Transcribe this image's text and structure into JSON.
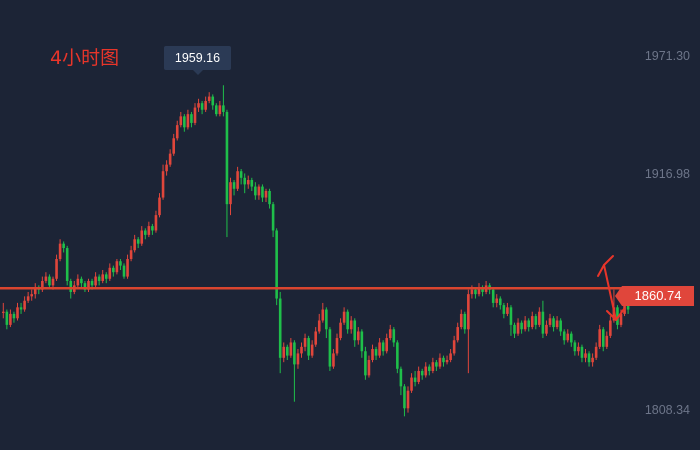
{
  "chart_data": {
    "type": "candlestick",
    "timeframe_label": "4小时图",
    "y_axis_labels": [
      "1971.30",
      "1916.98",
      "1808.34"
    ],
    "ylim": [
      1793,
      1998
    ],
    "peak_tooltip": "1959.16",
    "current_price_label": "1860.74",
    "horizontal_level": 1860.74,
    "colors": {
      "up": "#e0463b",
      "down": "#1fbf4a",
      "level_line": "#d9452f",
      "annotation": "#e8352a"
    },
    "grid": false,
    "candles": [
      [
        1856,
        1856,
        1853,
        1860
      ],
      [
        1856,
        1850,
        1848,
        1857
      ],
      [
        1850,
        1855,
        1849,
        1857
      ],
      [
        1855,
        1853,
        1851,
        1856
      ],
      [
        1853,
        1858,
        1852,
        1860
      ],
      [
        1858,
        1857,
        1855,
        1860
      ],
      [
        1857,
        1861,
        1856,
        1863
      ],
      [
        1861,
        1863,
        1860,
        1865
      ],
      [
        1863,
        1864,
        1861,
        1866
      ],
      [
        1864,
        1867,
        1862,
        1869
      ],
      [
        1867,
        1866,
        1864,
        1868
      ],
      [
        1866,
        1870,
        1865,
        1872
      ],
      [
        1870,
        1872,
        1869,
        1874
      ],
      [
        1872,
        1868,
        1867,
        1873
      ],
      [
        1868,
        1871,
        1866,
        1872
      ],
      [
        1871,
        1880,
        1870,
        1882
      ],
      [
        1880,
        1887,
        1879,
        1889
      ],
      [
        1887,
        1885,
        1883,
        1888
      ],
      [
        1885,
        1870,
        1868,
        1886
      ],
      [
        1870,
        1865,
        1862,
        1871
      ],
      [
        1865,
        1868,
        1864,
        1870
      ],
      [
        1868,
        1871,
        1867,
        1873
      ],
      [
        1871,
        1869,
        1867,
        1872
      ],
      [
        1869,
        1866,
        1865,
        1870
      ],
      [
        1866,
        1870,
        1865,
        1871
      ],
      [
        1870,
        1868,
        1866,
        1871
      ],
      [
        1868,
        1872,
        1867,
        1874
      ],
      [
        1872,
        1870,
        1868,
        1873
      ],
      [
        1870,
        1873,
        1869,
        1875
      ],
      [
        1873,
        1871,
        1869,
        1874
      ],
      [
        1871,
        1876,
        1870,
        1878
      ],
      [
        1876,
        1874,
        1872,
        1877
      ],
      [
        1874,
        1879,
        1873,
        1880
      ],
      [
        1879,
        1877,
        1875,
        1880
      ],
      [
        1877,
        1872,
        1871,
        1878
      ],
      [
        1872,
        1880,
        1871,
        1882
      ],
      [
        1880,
        1884,
        1879,
        1886
      ],
      [
        1884,
        1889,
        1883,
        1891
      ],
      [
        1889,
        1887,
        1885,
        1890
      ],
      [
        1887,
        1893,
        1886,
        1895
      ],
      [
        1893,
        1891,
        1889,
        1894
      ],
      [
        1891,
        1895,
        1890,
        1897
      ],
      [
        1895,
        1893,
        1891,
        1896
      ],
      [
        1893,
        1900,
        1892,
        1902
      ],
      [
        1900,
        1908,
        1899,
        1910
      ],
      [
        1908,
        1920,
        1907,
        1923
      ],
      [
        1920,
        1923,
        1918,
        1925
      ],
      [
        1923,
        1928,
        1922,
        1930
      ],
      [
        1928,
        1935,
        1927,
        1937
      ],
      [
        1935,
        1941,
        1934,
        1943
      ],
      [
        1941,
        1945,
        1940,
        1947
      ],
      [
        1945,
        1940,
        1938,
        1946
      ],
      [
        1940,
        1946,
        1939,
        1948
      ],
      [
        1946,
        1942,
        1940,
        1947
      ],
      [
        1942,
        1949,
        1941,
        1951
      ],
      [
        1949,
        1951,
        1947,
        1953
      ],
      [
        1951,
        1948,
        1946,
        1952
      ],
      [
        1948,
        1952,
        1947,
        1954
      ],
      [
        1952,
        1954,
        1951,
        1956
      ],
      [
        1954,
        1950,
        1948,
        1955
      ],
      [
        1950,
        1946,
        1945,
        1951
      ],
      [
        1946,
        1950,
        1945,
        1952
      ],
      [
        1950,
        1947,
        1945,
        1959.16
      ],
      [
        1947,
        1905,
        1890,
        1948
      ],
      [
        1905,
        1915,
        1900,
        1917
      ],
      [
        1915,
        1912,
        1909,
        1916
      ],
      [
        1912,
        1920,
        1911,
        1922
      ],
      [
        1920,
        1917,
        1914,
        1921
      ],
      [
        1917,
        1914,
        1910,
        1919
      ],
      [
        1914,
        1916,
        1912,
        1918
      ],
      [
        1916,
        1913,
        1911,
        1917
      ],
      [
        1913,
        1909,
        1907,
        1915
      ],
      [
        1909,
        1913,
        1907,
        1914
      ],
      [
        1913,
        1908,
        1906,
        1914
      ],
      [
        1908,
        1911,
        1906,
        1912
      ],
      [
        1911,
        1905,
        1903,
        1912
      ],
      [
        1905,
        1893,
        1890,
        1906
      ],
      [
        1893,
        1862,
        1859,
        1894
      ],
      [
        1862,
        1835,
        1828,
        1865
      ],
      [
        1835,
        1840,
        1833,
        1842
      ],
      [
        1840,
        1836,
        1834,
        1841
      ],
      [
        1836,
        1842,
        1835,
        1844
      ],
      [
        1842,
        1832,
        1815,
        1843
      ],
      [
        1832,
        1837,
        1830,
        1839
      ],
      [
        1837,
        1840,
        1835,
        1842
      ],
      [
        1840,
        1844,
        1838,
        1846
      ],
      [
        1844,
        1836,
        1834,
        1845
      ],
      [
        1836,
        1841,
        1835,
        1843
      ],
      [
        1841,
        1847,
        1840,
        1849
      ],
      [
        1847,
        1852,
        1846,
        1855
      ],
      [
        1852,
        1857,
        1851,
        1860
      ],
      [
        1857,
        1848,
        1844,
        1858
      ],
      [
        1848,
        1831,
        1829,
        1849
      ],
      [
        1831,
        1837,
        1830,
        1839
      ],
      [
        1837,
        1844,
        1836,
        1846
      ],
      [
        1844,
        1851,
        1843,
        1853
      ],
      [
        1851,
        1856,
        1850,
        1858
      ],
      [
        1856,
        1848,
        1846,
        1857
      ],
      [
        1848,
        1852,
        1846,
        1854
      ],
      [
        1852,
        1843,
        1840,
        1853
      ],
      [
        1843,
        1847,
        1841,
        1849
      ],
      [
        1847,
        1838,
        1835,
        1848
      ],
      [
        1838,
        1827,
        1825,
        1840
      ],
      [
        1827,
        1834,
        1826,
        1836
      ],
      [
        1834,
        1839,
        1833,
        1841
      ],
      [
        1839,
        1836,
        1834,
        1840
      ],
      [
        1836,
        1842,
        1835,
        1844
      ],
      [
        1842,
        1838,
        1836,
        1843
      ],
      [
        1838,
        1844,
        1837,
        1846
      ],
      [
        1844,
        1848,
        1843,
        1850
      ],
      [
        1848,
        1842,
        1840,
        1849
      ],
      [
        1842,
        1830,
        1828,
        1843
      ],
      [
        1830,
        1822,
        1818,
        1831
      ],
      [
        1822,
        1812,
        1808.34,
        1823
      ],
      [
        1812,
        1820,
        1810,
        1822
      ],
      [
        1820,
        1826,
        1819,
        1828
      ],
      [
        1826,
        1824,
        1822,
        1829
      ],
      [
        1824,
        1829,
        1823,
        1831
      ],
      [
        1829,
        1827,
        1825,
        1830
      ],
      [
        1827,
        1831,
        1826,
        1833
      ],
      [
        1831,
        1829,
        1827,
        1832
      ],
      [
        1829,
        1833,
        1828,
        1835
      ],
      [
        1833,
        1831,
        1829,
        1834
      ],
      [
        1831,
        1835,
        1830,
        1837
      ],
      [
        1835,
        1833,
        1831,
        1836
      ],
      [
        1833,
        1834,
        1832,
        1836
      ],
      [
        1834,
        1837,
        1833,
        1839
      ],
      [
        1837,
        1843,
        1836,
        1845
      ],
      [
        1843,
        1849,
        1842,
        1851
      ],
      [
        1849,
        1855,
        1848,
        1857
      ],
      [
        1855,
        1848,
        1846,
        1856
      ],
      [
        1848,
        1864,
        1828,
        1866
      ],
      [
        1864,
        1866,
        1862,
        1868
      ],
      [
        1866,
        1864,
        1862,
        1867
      ],
      [
        1864,
        1867,
        1863,
        1869
      ],
      [
        1867,
        1865,
        1863,
        1868
      ],
      [
        1865,
        1868,
        1864,
        1870
      ],
      [
        1868,
        1866,
        1864,
        1869
      ],
      [
        1866,
        1860,
        1858,
        1867
      ],
      [
        1860,
        1862,
        1858,
        1864
      ],
      [
        1862,
        1859,
        1857,
        1863
      ],
      [
        1859,
        1855,
        1853,
        1860
      ],
      [
        1855,
        1858,
        1854,
        1860
      ],
      [
        1858,
        1850,
        1845,
        1859
      ],
      [
        1850,
        1846,
        1844,
        1851
      ],
      [
        1846,
        1851,
        1845,
        1853
      ],
      [
        1851,
        1848,
        1846,
        1852
      ],
      [
        1848,
        1852,
        1847,
        1854
      ],
      [
        1852,
        1849,
        1847,
        1853
      ],
      [
        1849,
        1854,
        1848,
        1856
      ],
      [
        1854,
        1850,
        1848,
        1855
      ],
      [
        1850,
        1856,
        1849,
        1858
      ],
      [
        1856,
        1846,
        1844,
        1861
      ],
      [
        1846,
        1850,
        1845,
        1852
      ],
      [
        1850,
        1853,
        1849,
        1855
      ],
      [
        1853,
        1849,
        1847,
        1854
      ],
      [
        1849,
        1852,
        1848,
        1854
      ],
      [
        1852,
        1847,
        1845,
        1853
      ],
      [
        1847,
        1843,
        1841,
        1848
      ],
      [
        1843,
        1846,
        1842,
        1848
      ],
      [
        1846,
        1842,
        1840,
        1847
      ],
      [
        1842,
        1838,
        1836,
        1843
      ],
      [
        1838,
        1840,
        1836,
        1842
      ],
      [
        1840,
        1835,
        1833,
        1841
      ],
      [
        1835,
        1837,
        1833,
        1839
      ],
      [
        1837,
        1833,
        1831,
        1838
      ],
      [
        1833,
        1835,
        1831,
        1837
      ],
      [
        1835,
        1840,
        1834,
        1842
      ],
      [
        1840,
        1848,
        1839,
        1850
      ],
      [
        1848,
        1840,
        1838,
        1849
      ],
      [
        1840,
        1845,
        1839,
        1847
      ],
      [
        1845,
        1852,
        1844,
        1854
      ],
      [
        1852,
        1858,
        1851,
        1866
      ],
      [
        1858,
        1850,
        1848,
        1859
      ],
      [
        1850,
        1855,
        1849,
        1857
      ],
      [
        1855,
        1860,
        1854,
        1862
      ],
      [
        1860,
        1857,
        1855,
        1861
      ]
    ]
  }
}
